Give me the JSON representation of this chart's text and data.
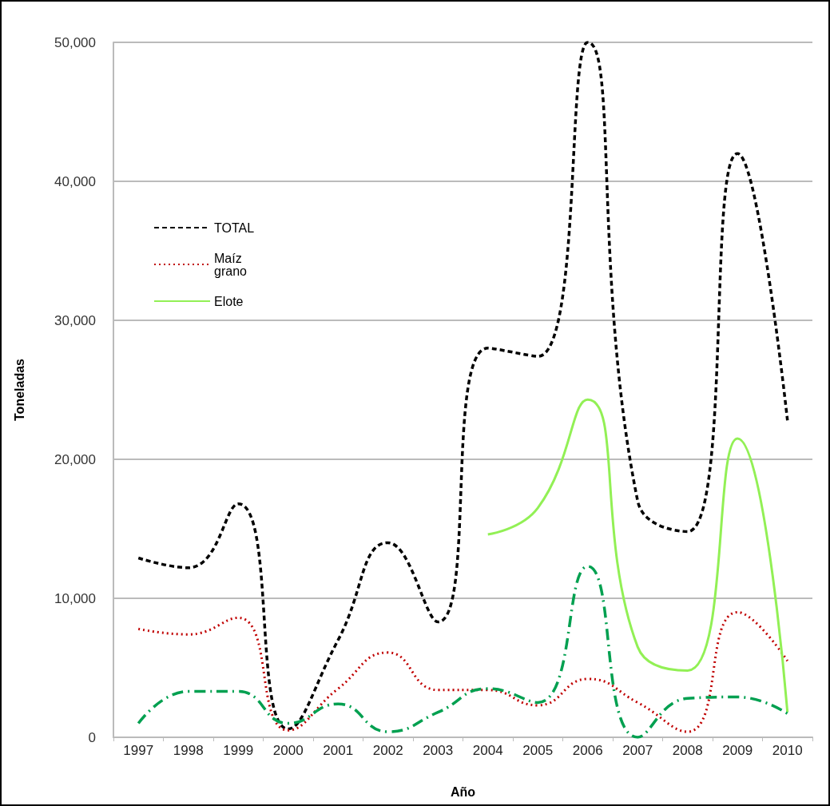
{
  "chart_data": {
    "type": "line",
    "xlabel": "Año",
    "ylabel": "Toneladas",
    "categories": [
      "1997",
      "1998",
      "1999",
      "2000",
      "2001",
      "2002",
      "2003",
      "2004",
      "2005",
      "2006",
      "2007",
      "2008",
      "2009",
      "2010"
    ],
    "series": [
      {
        "name": "TOTAL",
        "color": "#000000",
        "line_style": "dashed",
        "values": [
          12900,
          12200,
          16800,
          600,
          7000,
          14000,
          8300,
          28000,
          27400,
          50000,
          17000,
          14800,
          42000,
          22800
        ]
      },
      {
        "name": "Maíz grano",
        "color": "#c00000",
        "line_style": "dotted",
        "values": [
          7800,
          7400,
          8600,
          500,
          3500,
          6100,
          3400,
          3400,
          2300,
          4200,
          2500,
          400,
          9000,
          5500
        ]
      },
      {
        "name": "Elote",
        "color": "#92f055",
        "line_style": "solid",
        "values": [
          null,
          null,
          null,
          null,
          null,
          null,
          null,
          14600,
          16500,
          24300,
          6500,
          4800,
          21500,
          1800
        ]
      },
      {
        "color": "#00a050",
        "line_style": "dashdot",
        "values": [
          1000,
          3300,
          3300,
          1000,
          2400,
          400,
          1800,
          3500,
          2500,
          12300,
          0,
          2800,
          2900,
          1700
        ]
      }
    ],
    "ylim": [
      0,
      50000
    ],
    "yticks": [
      0,
      {
        "value": 10000,
        "label": "10,000"
      },
      {
        "value": 20000,
        "label": "20,000"
      },
      {
        "value": 30000,
        "label": "30,000"
      },
      {
        "value": 40000,
        "label": "40,000"
      },
      {
        "value": 50000,
        "label": "50,000"
      }
    ],
    "grid": "y",
    "legend": "left",
    "marker": "none"
  }
}
